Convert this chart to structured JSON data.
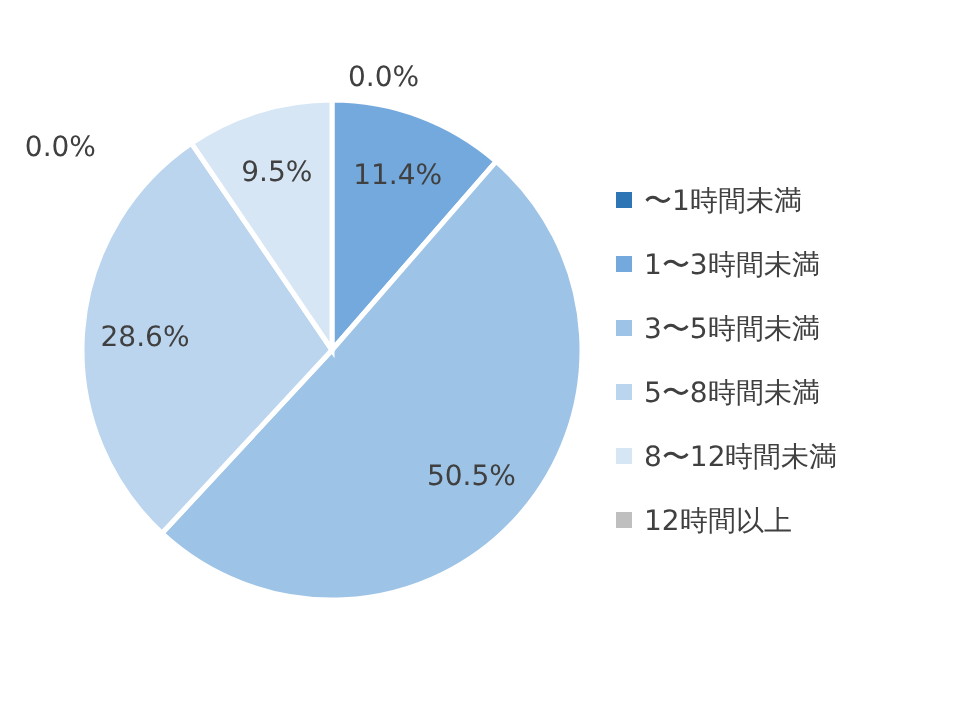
{
  "chart_data": {
    "type": "pie",
    "categories": [
      "〜1時間未満",
      "1〜3時間未満",
      "3〜5時間未満",
      "5〜8時間未満",
      "8〜12時間未満",
      "12時間以上"
    ],
    "values": [
      0.0,
      11.4,
      50.5,
      28.6,
      9.5,
      0.0
    ],
    "colors": [
      "#2e75b6",
      "#74a9dd",
      "#9dc3e6",
      "#bcd5ee",
      "#d7e6f5",
      "#bfbfbf"
    ],
    "value_labels": [
      "0.0%",
      "11.4%",
      "50.5%",
      "28.6%",
      "9.5%",
      "0.0%"
    ],
    "legend": "right"
  }
}
